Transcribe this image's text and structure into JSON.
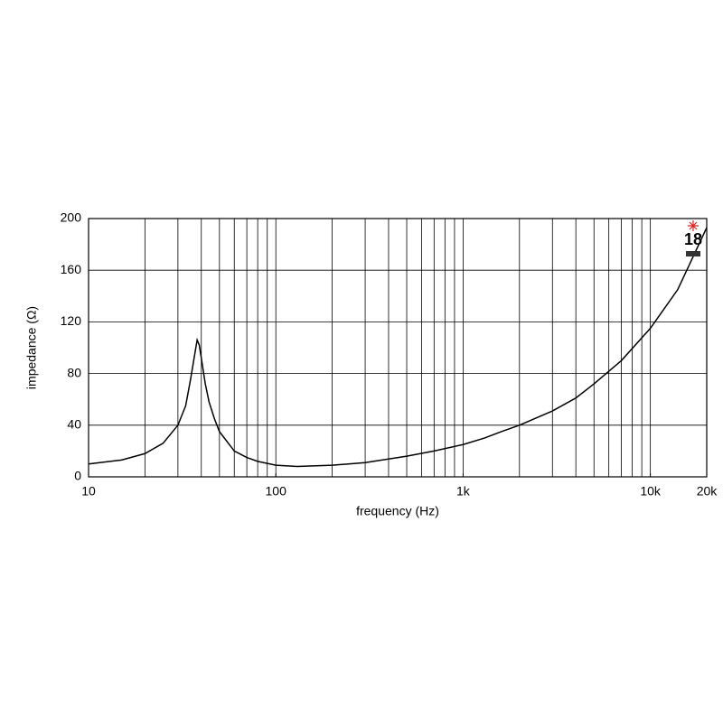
{
  "chart_data": {
    "type": "line",
    "xlabel": "frequency (Hz)",
    "ylabel": "impedance (Ω)",
    "logo": "18",
    "xscale": "log",
    "xlim": [
      10,
      20000
    ],
    "ylim": [
      0,
      200
    ],
    "xticks": [
      10,
      100,
      {
        "value": 1000,
        "label": "1k"
      },
      {
        "value": 10000,
        "label": "10k"
      },
      {
        "value": 20000,
        "label": "20k"
      }
    ],
    "xgrid": [
      20,
      30,
      40,
      50,
      60,
      70,
      80,
      90,
      100,
      200,
      300,
      400,
      500,
      600,
      700,
      800,
      900,
      1000,
      2000,
      3000,
      4000,
      5000,
      6000,
      7000,
      8000,
      9000,
      10000
    ],
    "yticks": [
      0,
      40,
      80,
      120,
      160,
      200
    ],
    "grid": true,
    "series": [
      {
        "color": "#000000",
        "x": [
          10,
          15,
          20,
          25,
          30,
          33,
          35,
          37,
          38,
          39,
          40,
          42,
          44,
          47,
          50,
          60,
          70,
          80,
          100,
          130,
          200,
          300,
          500,
          700,
          1000,
          1300,
          1600,
          2000,
          3000,
          4000,
          5000,
          7000,
          10000,
          14000,
          20000
        ],
        "values": [
          10,
          13,
          18,
          26,
          40,
          55,
          75,
          96,
          106,
          102,
          92,
          72,
          58,
          45,
          35,
          20,
          15,
          12,
          9,
          8,
          9,
          11,
          16,
          20,
          25,
          30,
          35,
          40,
          51,
          61,
          72,
          90,
          115,
          145,
          193
        ]
      }
    ]
  }
}
